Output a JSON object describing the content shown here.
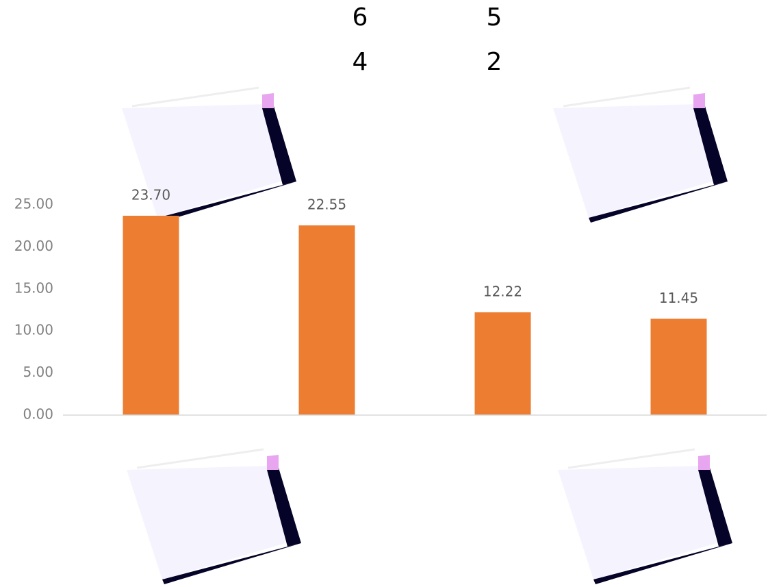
{
  "chart_data": {
    "type": "bar",
    "annotations": [
      "6",
      "5",
      "4",
      "2"
    ],
    "categories": [
      null,
      null,
      null,
      null
    ],
    "values": [
      23.7,
      22.55,
      12.22,
      11.45
    ],
    "value_labels": [
      "23.70",
      "22.55",
      "12.22",
      "11.45"
    ],
    "color": "#ed7d31",
    "ylim": [
      0,
      25
    ],
    "yticks": [
      {
        "value": 0,
        "label": "0.00"
      },
      {
        "value": 5,
        "label": "5.00"
      },
      {
        "value": 10,
        "label": "10.00"
      },
      {
        "value": 15,
        "label": "15.00"
      },
      {
        "value": 20,
        "label": "20.00"
      },
      {
        "value": 25,
        "label": "25.00"
      }
    ],
    "grid": false
  }
}
